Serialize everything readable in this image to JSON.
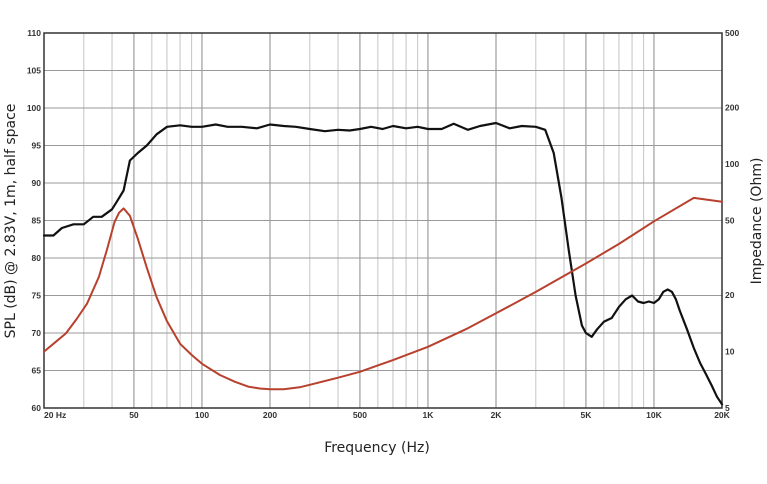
{
  "chart_data": {
    "type": "line",
    "title": "",
    "xlabel": "Frequency (Hz)",
    "ylabel_left": "SPL (dB) @ 2.83V, 1m, half space",
    "ylabel_right": "Impedance (Ohm)",
    "x_scale": "log",
    "xlim": [
      20,
      20000
    ],
    "ylim_left": [
      60,
      110
    ],
    "ylim_right": [
      5,
      500
    ],
    "y_right_scale": "log",
    "grid": true,
    "x_ticks": [
      {
        "value": 20,
        "label": "20  Hz"
      },
      {
        "value": 50,
        "label": "50"
      },
      {
        "value": 100,
        "label": "100"
      },
      {
        "value": 200,
        "label": "200"
      },
      {
        "value": 500,
        "label": "500"
      },
      {
        "value": 1000,
        "label": "1K"
      },
      {
        "value": 2000,
        "label": "2K"
      },
      {
        "value": 5000,
        "label": "5K"
      },
      {
        "value": 10000,
        "label": "10K"
      },
      {
        "value": 20000,
        "label": "20K"
      }
    ],
    "y_left_ticks": [
      "60",
      "65",
      "70",
      "75",
      "80",
      "85",
      "90",
      "95",
      "100",
      "105",
      "110"
    ],
    "y_right_ticks": [
      {
        "value": 5,
        "label": "5"
      },
      {
        "value": 10,
        "label": "10"
      },
      {
        "value": 20,
        "label": "20"
      },
      {
        "value": 50,
        "label": "50"
      },
      {
        "value": 100,
        "label": "100"
      },
      {
        "value": 200,
        "label": "200"
      },
      {
        "value": 500,
        "label": "500"
      }
    ],
    "series": [
      {
        "axis": "left",
        "color": "#111111",
        "x": [
          20,
          22,
          24,
          27,
          30,
          33,
          36,
          40,
          42,
          45,
          48,
          52,
          57,
          63,
          70,
          80,
          90,
          100,
          115,
          130,
          150,
          175,
          200,
          230,
          260,
          300,
          350,
          400,
          450,
          500,
          560,
          630,
          700,
          800,
          900,
          1000,
          1150,
          1300,
          1500,
          1700,
          2000,
          2300,
          2600,
          3000,
          3300,
          3600,
          3900,
          4200,
          4500,
          4800,
          5000,
          5300,
          5600,
          6000,
          6500,
          7000,
          7500,
          8000,
          8500,
          9000,
          9500,
          10000,
          10500,
          11000,
          11500,
          12000,
          12500,
          13000,
          14000,
          15000,
          16000,
          17000,
          18000,
          19000,
          20000
        ],
        "values": [
          83,
          83,
          84,
          84.5,
          84.5,
          85.5,
          85.5,
          86.5,
          87.5,
          89,
          93,
          94,
          95,
          96.5,
          97.5,
          97.7,
          97.5,
          97.5,
          97.8,
          97.5,
          97.5,
          97.3,
          97.8,
          97.6,
          97.5,
          97.2,
          96.9,
          97.1,
          97.0,
          97.2,
          97.5,
          97.2,
          97.6,
          97.3,
          97.5,
          97.2,
          97.2,
          97.9,
          97.1,
          97.6,
          98.0,
          97.3,
          97.6,
          97.5,
          97.1,
          94,
          88,
          81,
          75,
          71,
          70,
          69.5,
          70.5,
          71.5,
          72,
          73.5,
          74.5,
          75,
          74.2,
          74.0,
          74.2,
          74.0,
          74.5,
          75.5,
          75.8,
          75.5,
          74.5,
          73,
          70.5,
          68,
          66,
          64.5,
          63,
          61.5,
          60.5
        ]
      },
      {
        "axis": "right",
        "color": "#b8412e",
        "x": [
          20,
          22,
          25,
          28,
          31,
          35,
          38,
          41,
          43,
          45,
          48,
          52,
          57,
          63,
          70,
          80,
          90,
          100,
          120,
          140,
          160,
          180,
          200,
          230,
          270,
          300,
          400,
          500,
          700,
          1000,
          1500,
          2000,
          3000,
          5000,
          7000,
          10000,
          15000,
          20000
        ],
        "values": [
          10,
          11,
          12.5,
          15,
          18,
          25,
          35,
          49,
          55,
          58,
          53,
          40,
          28,
          19.5,
          14.5,
          11,
          9.6,
          8.6,
          7.5,
          6.9,
          6.5,
          6.35,
          6.3,
          6.3,
          6.45,
          6.65,
          7.25,
          7.8,
          9.0,
          10.6,
          13.3,
          16.0,
          20.8,
          29.5,
          37.5,
          49.5,
          66,
          63
        ]
      }
    ]
  }
}
